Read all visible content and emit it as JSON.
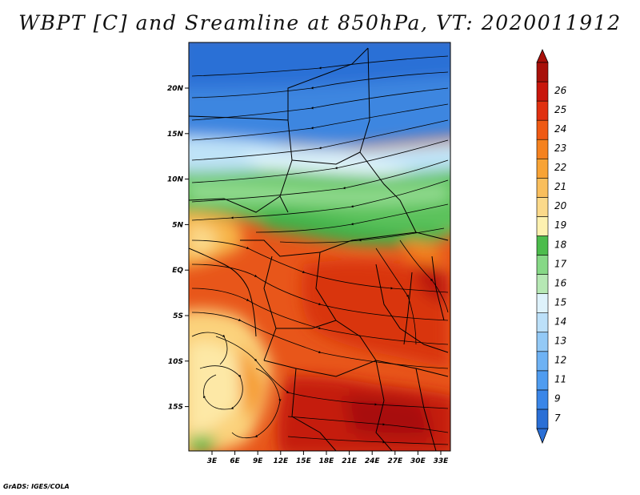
{
  "title": "WBPT [C] and Sreamline at 850hPa, VT: 2020011912",
  "credit": "GrADS: IGES/COLA",
  "map": {
    "lat_ticks": [
      "20N",
      "15N",
      "10N",
      "5N",
      "EQ",
      "5S",
      "10S",
      "15S"
    ],
    "lon_ticks": [
      "3E",
      "6E",
      "9E",
      "12E",
      "15E",
      "18E",
      "21E",
      "24E",
      "27E",
      "30E",
      "33E"
    ]
  },
  "colorbar": {
    "labels": [
      "7",
      "9",
      "11",
      "12",
      "13",
      "14",
      "15",
      "16",
      "17",
      "18",
      "19",
      "20",
      "21",
      "22",
      "23",
      "24",
      "25",
      "26"
    ],
    "colors": [
      "#2a6fd6",
      "#3a86e8",
      "#4f9cf0",
      "#6eb2f4",
      "#93c9f6",
      "#bce0f9",
      "#def2fb",
      "#b6e8b4",
      "#86d886",
      "#4cbc4c",
      "#fdf1b0",
      "#fbd98a",
      "#f9be5c",
      "#f8a335",
      "#f5821f",
      "#ef5a14",
      "#e03010",
      "#c8160c",
      "#a8100a"
    ]
  }
}
